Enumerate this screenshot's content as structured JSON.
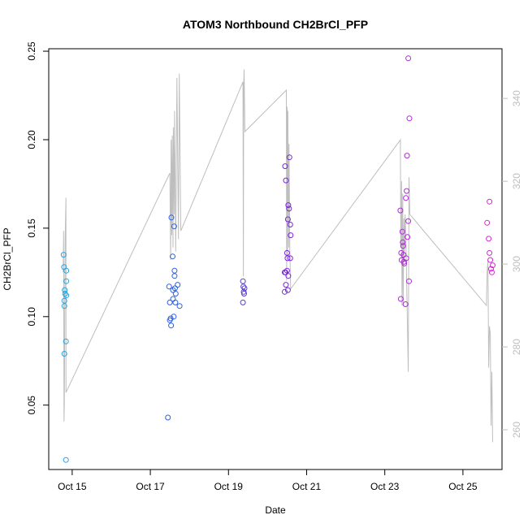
{
  "chart_data": {
    "type": "scatter",
    "title": "ATOM3 Northbound CH2BrCl_PFP",
    "xlabel": "Date",
    "ylabel": "CH2BrCl_PFP",
    "x_ticks": [
      {
        "label": "Oct 15",
        "day": 15
      },
      {
        "label": "Oct 17",
        "day": 17
      },
      {
        "label": "Oct 19",
        "day": 19
      },
      {
        "label": "Oct 21",
        "day": 21
      },
      {
        "label": "Oct 23",
        "day": 23
      },
      {
        "label": "Oct 25",
        "day": 25
      }
    ],
    "xlim": [
      14.4,
      26.0
    ],
    "ylim": [
      0.0136,
      0.2514
    ],
    "y_ticks": [
      "0.05",
      "0.10",
      "0.15",
      "0.20",
      "0.25"
    ],
    "y_tick_values": [
      0.05,
      0.1,
      0.15,
      0.2,
      0.25
    ],
    "y2lim": [
      250.4,
      352.0
    ],
    "y2_ticks": [
      "260",
      "280",
      "300",
      "320",
      "340"
    ],
    "y2_tick_values": [
      260,
      280,
      300,
      320,
      340
    ],
    "grid": false,
    "legend": "none",
    "colors": {
      "line": "#bebebe",
      "axis": "#000000",
      "right_axis": "#bebebe",
      "point_groups": [
        "#29a3e0",
        "#2a5fe6",
        "#5a3ad6",
        "#7a28d8",
        "#b02ad8",
        "#d02ad2"
      ]
    },
    "points": [
      {
        "x": 14.78,
        "y": 0.135,
        "g": 0
      },
      {
        "x": 14.79,
        "y": 0.128,
        "g": 0
      },
      {
        "x": 14.8,
        "y": 0.109,
        "g": 0
      },
      {
        "x": 14.8,
        "y": 0.106,
        "g": 0
      },
      {
        "x": 14.81,
        "y": 0.115,
        "g": 0
      },
      {
        "x": 14.82,
        "y": 0.113,
        "g": 0
      },
      {
        "x": 14.8,
        "y": 0.079,
        "g": 0
      },
      {
        "x": 14.85,
        "y": 0.126,
        "g": 0
      },
      {
        "x": 14.85,
        "y": 0.12,
        "g": 0
      },
      {
        "x": 14.85,
        "y": 0.112,
        "g": 0
      },
      {
        "x": 14.84,
        "y": 0.086,
        "g": 0
      },
      {
        "x": 14.84,
        "y": 0.019,
        "g": 0
      },
      {
        "x": 17.45,
        "y": 0.043,
        "g": 1
      },
      {
        "x": 17.48,
        "y": 0.117,
        "g": 1
      },
      {
        "x": 17.5,
        "y": 0.108,
        "g": 1
      },
      {
        "x": 17.5,
        "y": 0.098,
        "g": 1
      },
      {
        "x": 17.52,
        "y": 0.099,
        "g": 1
      },
      {
        "x": 17.53,
        "y": 0.095,
        "g": 1
      },
      {
        "x": 17.54,
        "y": 0.156,
        "g": 1
      },
      {
        "x": 17.57,
        "y": 0.134,
        "g": 1
      },
      {
        "x": 17.58,
        "y": 0.115,
        "g": 1
      },
      {
        "x": 17.58,
        "y": 0.11,
        "g": 1
      },
      {
        "x": 17.6,
        "y": 0.1,
        "g": 1
      },
      {
        "x": 17.61,
        "y": 0.151,
        "g": 1
      },
      {
        "x": 17.62,
        "y": 0.126,
        "g": 1
      },
      {
        "x": 17.62,
        "y": 0.123,
        "g": 1
      },
      {
        "x": 17.63,
        "y": 0.116,
        "g": 1
      },
      {
        "x": 17.64,
        "y": 0.108,
        "g": 1
      },
      {
        "x": 17.65,
        "y": 0.113,
        "g": 1
      },
      {
        "x": 17.7,
        "y": 0.118,
        "g": 1
      },
      {
        "x": 17.75,
        "y": 0.106,
        "g": 1
      },
      {
        "x": 19.37,
        "y": 0.12,
        "g": 2
      },
      {
        "x": 19.38,
        "y": 0.117,
        "g": 2
      },
      {
        "x": 19.39,
        "y": 0.114,
        "g": 2
      },
      {
        "x": 19.4,
        "y": 0.113,
        "g": 2
      },
      {
        "x": 19.41,
        "y": 0.116,
        "g": 2
      },
      {
        "x": 19.37,
        "y": 0.108,
        "g": 2
      },
      {
        "x": 20.45,
        "y": 0.185,
        "g": 3
      },
      {
        "x": 20.47,
        "y": 0.177,
        "g": 3
      },
      {
        "x": 20.44,
        "y": 0.125,
        "g": 3
      },
      {
        "x": 20.46,
        "y": 0.125,
        "g": 3
      },
      {
        "x": 20.47,
        "y": 0.118,
        "g": 3
      },
      {
        "x": 20.44,
        "y": 0.114,
        "g": 3
      },
      {
        "x": 20.5,
        "y": 0.126,
        "g": 3
      },
      {
        "x": 20.52,
        "y": 0.115,
        "g": 3
      },
      {
        "x": 20.52,
        "y": 0.155,
        "g": 3
      },
      {
        "x": 20.53,
        "y": 0.163,
        "g": 3
      },
      {
        "x": 20.55,
        "y": 0.161,
        "g": 3
      },
      {
        "x": 20.5,
        "y": 0.136,
        "g": 3
      },
      {
        "x": 20.51,
        "y": 0.133,
        "g": 3
      },
      {
        "x": 20.53,
        "y": 0.123,
        "g": 3
      },
      {
        "x": 20.56,
        "y": 0.19,
        "g": 3
      },
      {
        "x": 20.58,
        "y": 0.152,
        "g": 3
      },
      {
        "x": 20.59,
        "y": 0.146,
        "g": 3
      },
      {
        "x": 20.58,
        "y": 0.133,
        "g": 3
      },
      {
        "x": 23.4,
        "y": 0.16,
        "g": 4
      },
      {
        "x": 23.42,
        "y": 0.136,
        "g": 4
      },
      {
        "x": 23.43,
        "y": 0.132,
        "g": 4
      },
      {
        "x": 23.45,
        "y": 0.148,
        "g": 4
      },
      {
        "x": 23.46,
        "y": 0.142,
        "g": 4
      },
      {
        "x": 23.47,
        "y": 0.14,
        "g": 4
      },
      {
        "x": 23.48,
        "y": 0.135,
        "g": 4
      },
      {
        "x": 23.49,
        "y": 0.131,
        "g": 4
      },
      {
        "x": 23.5,
        "y": 0.13,
        "g": 4
      },
      {
        "x": 23.41,
        "y": 0.11,
        "g": 4
      },
      {
        "x": 23.53,
        "y": 0.107,
        "g": 4
      },
      {
        "x": 23.54,
        "y": 0.167,
        "g": 4
      },
      {
        "x": 23.56,
        "y": 0.171,
        "g": 4
      },
      {
        "x": 23.58,
        "y": 0.145,
        "g": 4
      },
      {
        "x": 23.6,
        "y": 0.154,
        "g": 4
      },
      {
        "x": 23.57,
        "y": 0.191,
        "g": 4
      },
      {
        "x": 23.63,
        "y": 0.212,
        "g": 4
      },
      {
        "x": 23.6,
        "y": 0.246,
        "g": 4
      },
      {
        "x": 23.62,
        "y": 0.12,
        "g": 4
      },
      {
        "x": 23.55,
        "y": 0.133,
        "g": 4
      },
      {
        "x": 25.62,
        "y": 0.153,
        "g": 5
      },
      {
        "x": 25.68,
        "y": 0.165,
        "g": 5
      },
      {
        "x": 25.66,
        "y": 0.144,
        "g": 5
      },
      {
        "x": 25.68,
        "y": 0.136,
        "g": 5
      },
      {
        "x": 25.7,
        "y": 0.132,
        "g": 5
      },
      {
        "x": 25.72,
        "y": 0.127,
        "g": 5
      },
      {
        "x": 25.74,
        "y": 0.125,
        "g": 5
      },
      {
        "x": 25.76,
        "y": 0.129,
        "g": 5
      }
    ],
    "line_series": [
      {
        "x": 14.77,
        "y": 298
      },
      {
        "x": 14.78,
        "y": 308
      },
      {
        "x": 14.79,
        "y": 262
      },
      {
        "x": 14.8,
        "y": 266
      },
      {
        "x": 14.82,
        "y": 306
      },
      {
        "x": 14.84,
        "y": 316
      },
      {
        "x": 14.84,
        "y": 269
      },
      {
        "x": 17.5,
        "y": 322
      },
      {
        "x": 17.51,
        "y": 311
      },
      {
        "x": 17.52,
        "y": 301
      },
      {
        "x": 17.53,
        "y": 330
      },
      {
        "x": 17.55,
        "y": 307
      },
      {
        "x": 17.56,
        "y": 331
      },
      {
        "x": 17.58,
        "y": 304
      },
      {
        "x": 17.59,
        "y": 333
      },
      {
        "x": 17.61,
        "y": 312
      },
      {
        "x": 17.62,
        "y": 337
      },
      {
        "x": 17.65,
        "y": 303
      },
      {
        "x": 17.68,
        "y": 345
      },
      {
        "x": 17.72,
        "y": 306
      },
      {
        "x": 17.74,
        "y": 346
      },
      {
        "x": 17.78,
        "y": 308
      },
      {
        "x": 19.37,
        "y": 344
      },
      {
        "x": 19.38,
        "y": 297
      },
      {
        "x": 19.39,
        "y": 343
      },
      {
        "x": 19.4,
        "y": 347
      },
      {
        "x": 19.42,
        "y": 332
      },
      {
        "x": 20.48,
        "y": 342
      },
      {
        "x": 20.49,
        "y": 296
      },
      {
        "x": 20.5,
        "y": 338
      },
      {
        "x": 20.51,
        "y": 302
      },
      {
        "x": 20.52,
        "y": 337
      },
      {
        "x": 20.54,
        "y": 304
      },
      {
        "x": 20.55,
        "y": 329
      },
      {
        "x": 20.57,
        "y": 303
      },
      {
        "x": 20.59,
        "y": 294
      },
      {
        "x": 23.4,
        "y": 330
      },
      {
        "x": 23.41,
        "y": 304
      },
      {
        "x": 23.43,
        "y": 320
      },
      {
        "x": 23.44,
        "y": 290
      },
      {
        "x": 23.46,
        "y": 317
      },
      {
        "x": 23.47,
        "y": 290
      },
      {
        "x": 23.49,
        "y": 311
      },
      {
        "x": 23.5,
        "y": 302
      },
      {
        "x": 23.52,
        "y": 312
      },
      {
        "x": 23.54,
        "y": 306
      },
      {
        "x": 23.56,
        "y": 296
      },
      {
        "x": 23.6,
        "y": 274
      },
      {
        "x": 23.62,
        "y": 321
      },
      {
        "x": 23.64,
        "y": 312
      },
      {
        "x": 25.6,
        "y": 290
      },
      {
        "x": 25.62,
        "y": 298
      },
      {
        "x": 25.64,
        "y": 301
      },
      {
        "x": 25.66,
        "y": 275
      },
      {
        "x": 25.68,
        "y": 285
      },
      {
        "x": 25.7,
        "y": 283
      },
      {
        "x": 25.72,
        "y": 261
      },
      {
        "x": 25.74,
        "y": 274
      },
      {
        "x": 25.76,
        "y": 257
      }
    ]
  }
}
